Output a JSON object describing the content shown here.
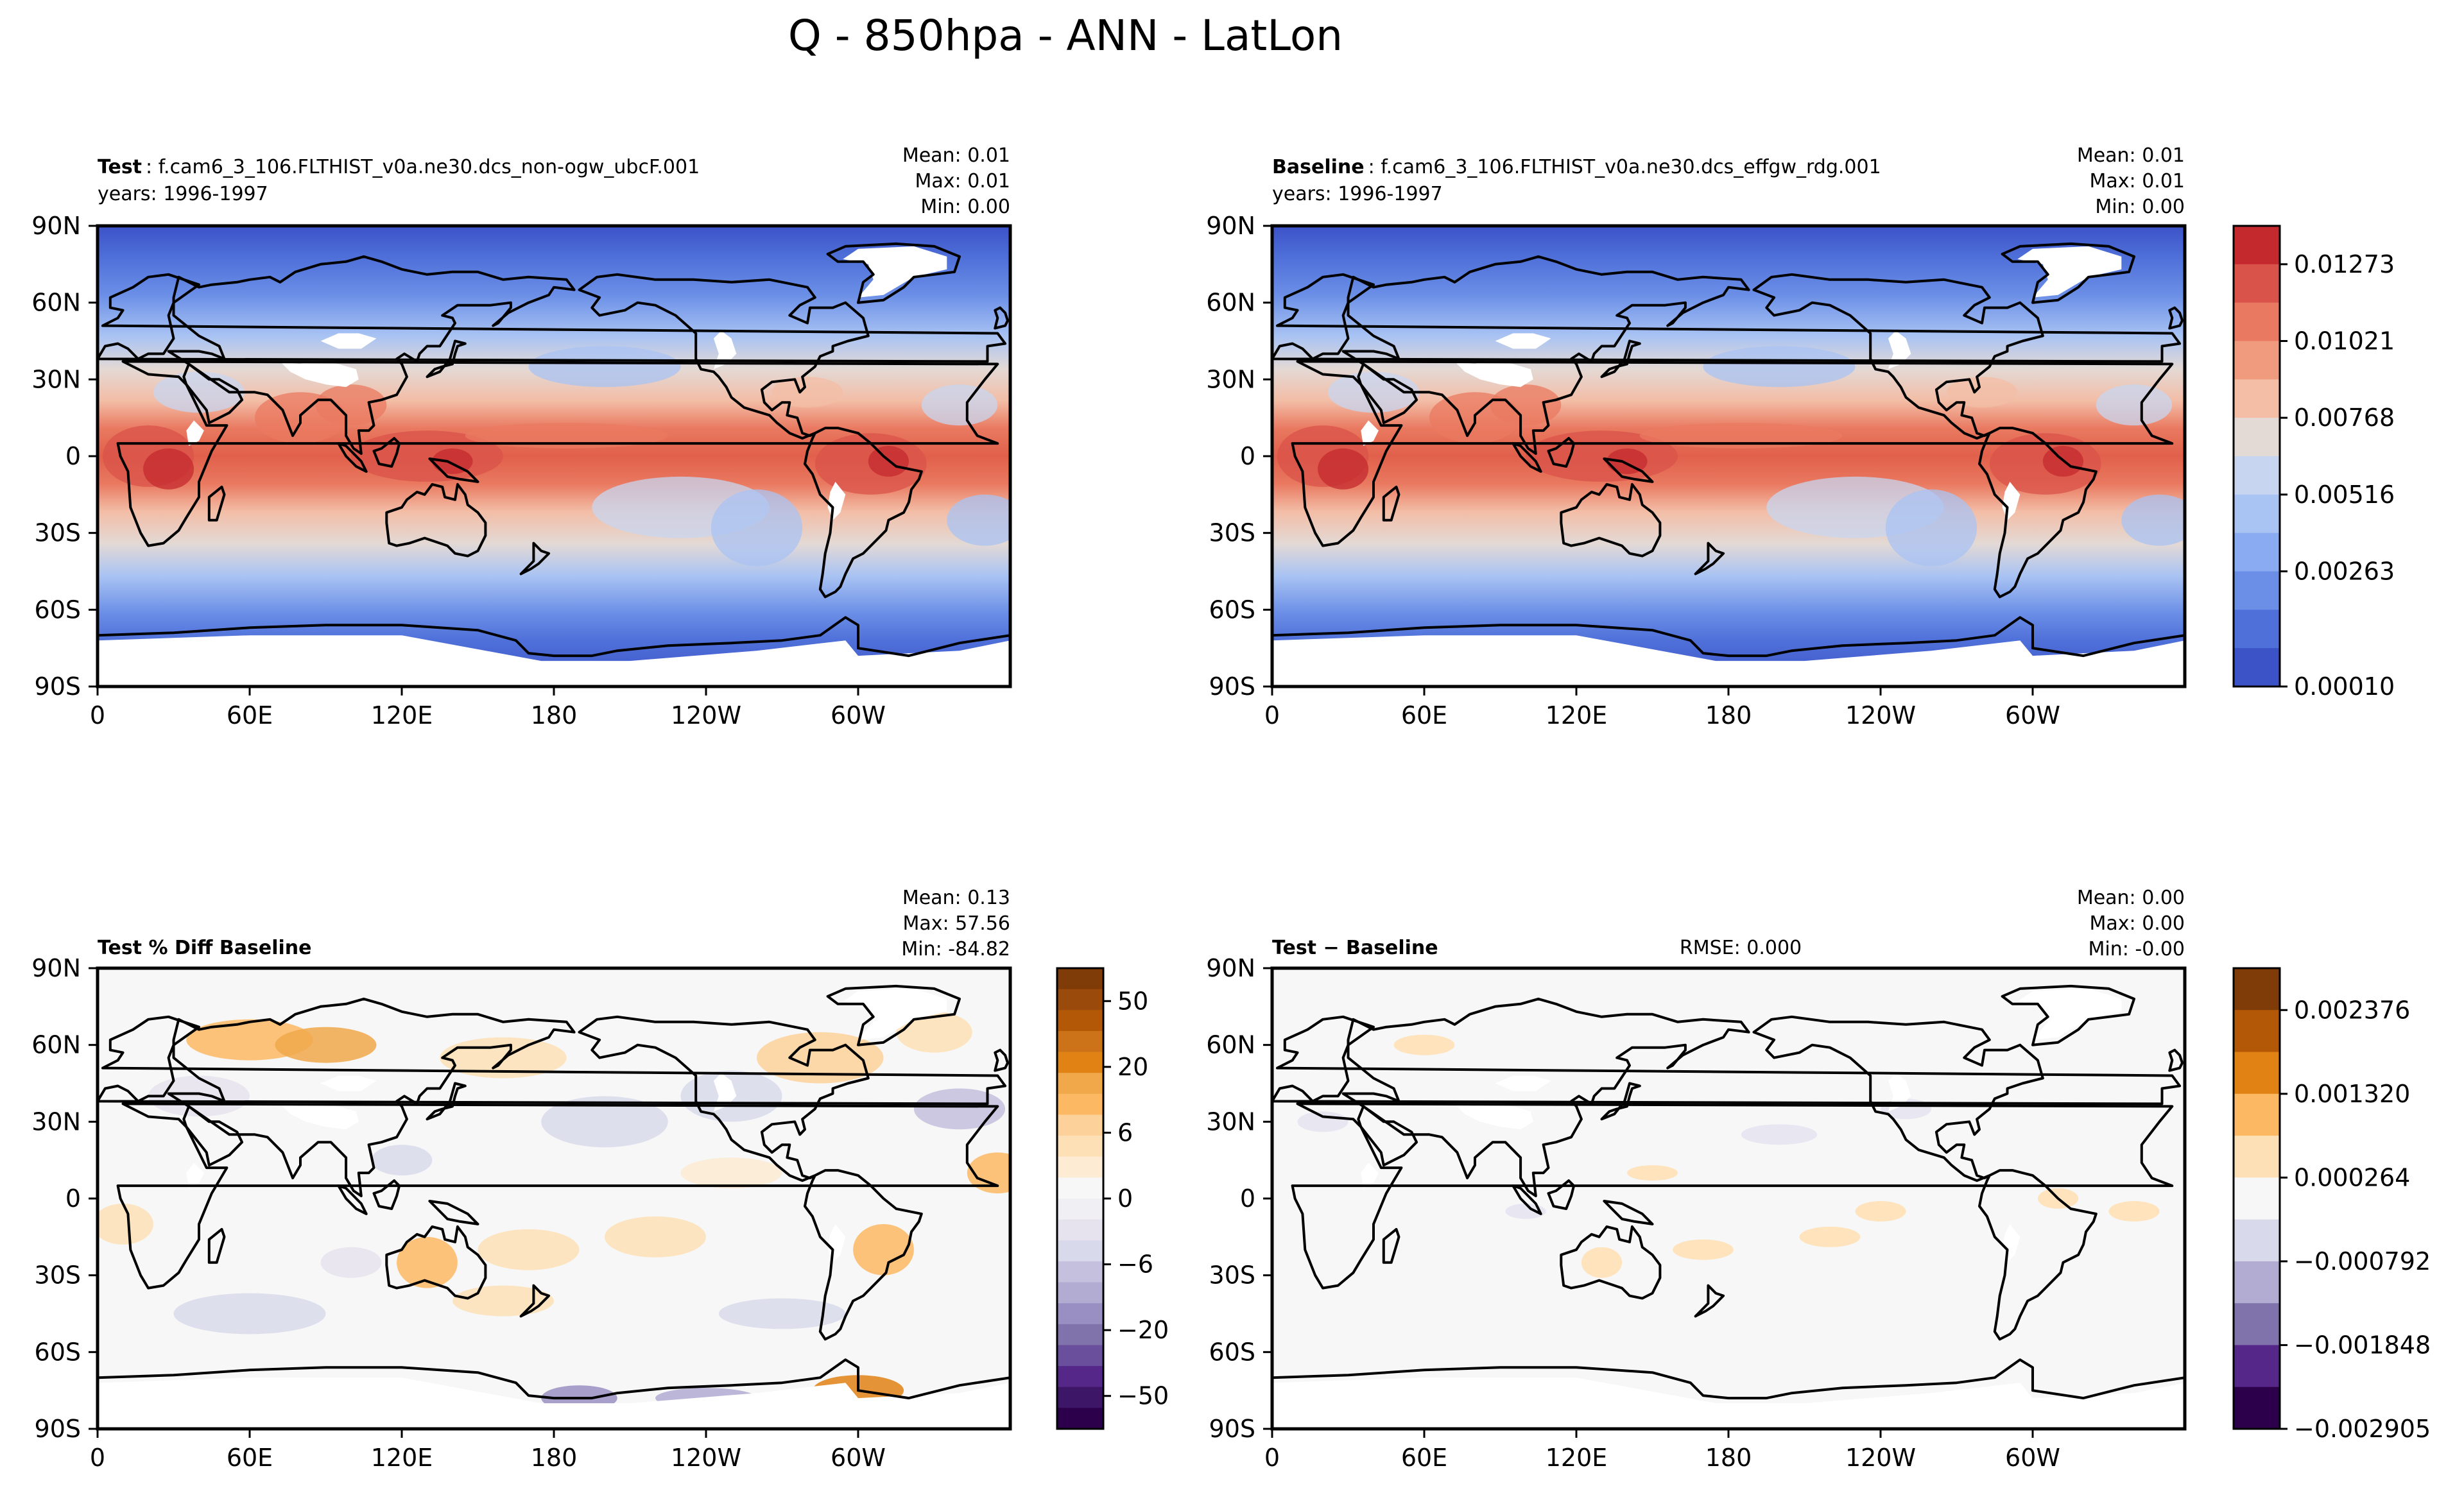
{
  "figure_title": "Q - 850hpa - ANN - LatLon",
  "colors": {
    "ocean_base": "#f7f7f7",
    "land_missing": "#ffffff",
    "coastline": "#000000"
  },
  "chart_data": [
    {
      "type": "heatmap",
      "panel": "test",
      "title_bold": "Test",
      "title_rest": ": f.cam6_3_106.FLTHIST_v0a.ne30.dcs_non-ogw_ubcF.001",
      "subtitle": "years: 1996-1997",
      "stats": [
        "Mean:  0.01",
        "Max:  0.01",
        "Min:  0.00"
      ],
      "x_ticks": [
        "0",
        "60E",
        "120E",
        "180",
        "120W",
        "60W"
      ],
      "y_ticks": [
        "90N",
        "60N",
        "30N",
        "0",
        "30S",
        "60S",
        "90S"
      ],
      "xlim": [
        0,
        360
      ],
      "ylim": [
        -90,
        90
      ],
      "field": "humidity"
    },
    {
      "type": "heatmap",
      "panel": "baseline",
      "title_bold": "Baseline",
      "title_rest": ": f.cam6_3_106.FLTHIST_v0a.ne30.dcs_effgw_rdg.001",
      "subtitle": "years: 1996-1997",
      "stats": [
        "Mean:  0.01",
        "Max:  0.01",
        "Min:  0.00"
      ],
      "x_ticks": [
        "0",
        "60E",
        "120E",
        "180",
        "120W",
        "60W"
      ],
      "y_ticks": [
        "90N",
        "60N",
        "30N",
        "0",
        "30S",
        "60S",
        "90S"
      ],
      "xlim": [
        0,
        360
      ],
      "ylim": [
        -90,
        90
      ],
      "field": "humidity",
      "colorbar": {
        "labels": [
          "0.01273",
          "0.01021",
          "0.00768",
          "0.00516",
          "0.00263",
          "0.00010"
        ],
        "levels": [
          "#c42a2d",
          "#d9534a",
          "#e97960",
          "#f19b7e",
          "#f3bda6",
          "#e3d9d5",
          "#c8d5f0",
          "#a9c3f3",
          "#8aabf1",
          "#6b8fe7",
          "#4f70d9",
          "#3c52c7"
        ]
      }
    },
    {
      "type": "heatmap",
      "panel": "pct_diff",
      "title_bold": "Test % Diff Baseline",
      "title_rest": "",
      "subtitle": "",
      "stats": [
        "Mean:  0.13",
        "Max: 57.56",
        "Min: -84.82"
      ],
      "x_ticks": [
        "0",
        "60E",
        "120E",
        "180",
        "120W",
        "60W"
      ],
      "y_ticks": [
        "90N",
        "60N",
        "30N",
        "0",
        "30S",
        "60S",
        "90S"
      ],
      "xlim": [
        0,
        360
      ],
      "ylim": [
        -90,
        90
      ],
      "field": "pctdiff",
      "colorbar": {
        "labels": [
          "50",
          "20",
          "6",
          "0",
          "−6",
          "−20",
          "−50"
        ],
        "levels": [
          "#7f3b08",
          "#9a4a0a",
          "#b35806",
          "#cc7319",
          "#e08214",
          "#f0a84a",
          "#fdb863",
          "#fdd29a",
          "#fee0b6",
          "#fdebd4",
          "#f7f7f7",
          "#f0f0f4",
          "#e6e3ef",
          "#d8daeb",
          "#c4c0dd",
          "#b2abd2",
          "#9a8fc2",
          "#8073ac",
          "#6a4f9c",
          "#542788",
          "#3d1667",
          "#2d004b"
        ]
      }
    },
    {
      "type": "heatmap",
      "panel": "abs_diff",
      "title_bold": "Test − Baseline",
      "title_rest": "",
      "subtitle": "",
      "rmse": "RMSE: 0.000",
      "stats": [
        "Mean:  0.00",
        "Max:  0.00",
        "Min: -0.00"
      ],
      "x_ticks": [
        "0",
        "60E",
        "120E",
        "180",
        "120W",
        "60W"
      ],
      "y_ticks": [
        "90N",
        "60N",
        "30N",
        "0",
        "30S",
        "60S",
        "90S"
      ],
      "xlim": [
        0,
        360
      ],
      "ylim": [
        -90,
        90
      ],
      "field": "absdiff",
      "colorbar": {
        "labels": [
          "0.002376",
          "0.001320",
          "0.000264",
          "−0.000792",
          "−0.001848",
          "−0.002905"
        ],
        "levels": [
          "#7f3b08",
          "#b35806",
          "#e08214",
          "#fdb863",
          "#fee0b6",
          "#f7f7f7",
          "#d8daeb",
          "#b2abd2",
          "#8073ac",
          "#542788",
          "#2d004b"
        ]
      }
    }
  ]
}
